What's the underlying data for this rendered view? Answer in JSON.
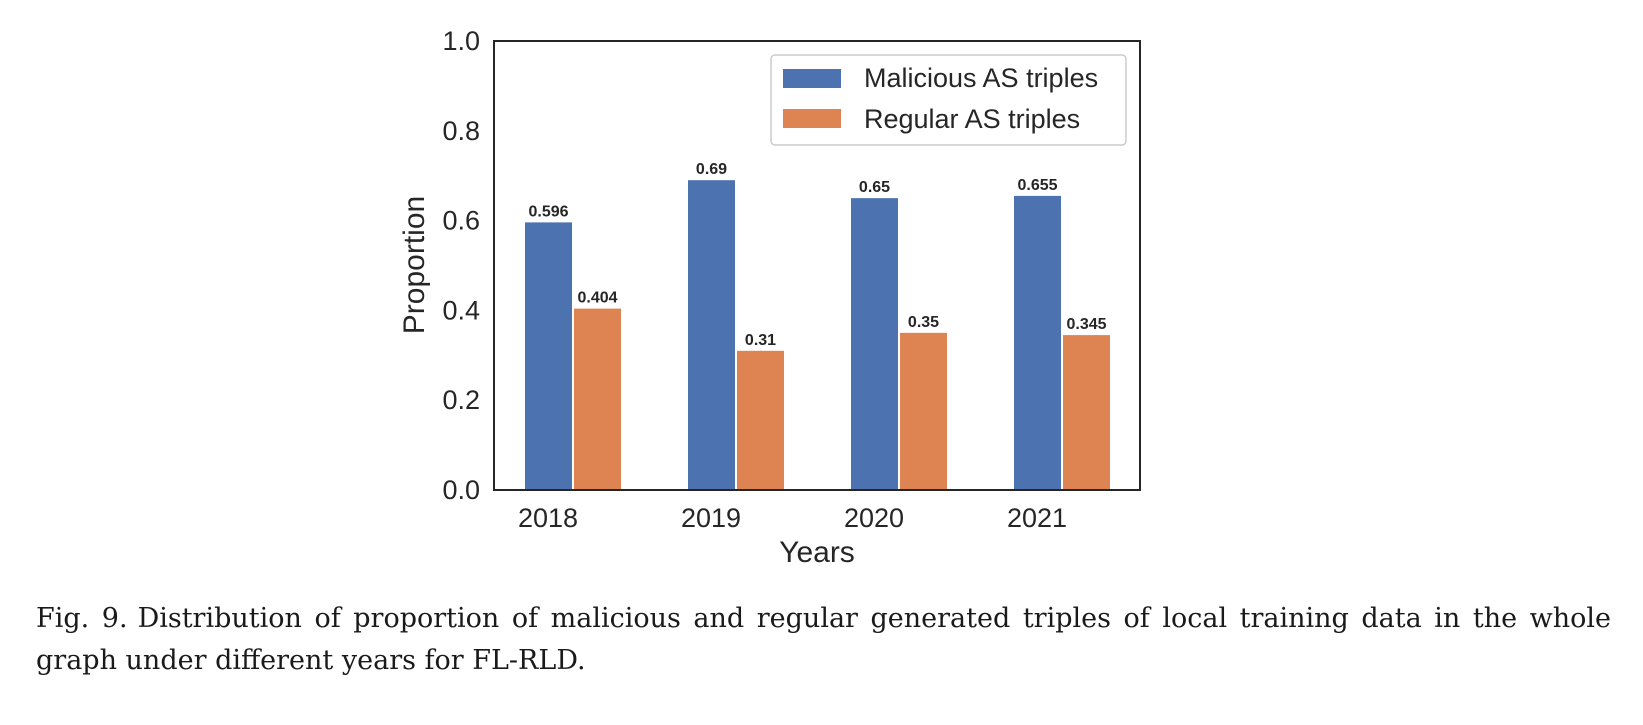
{
  "chart_data": {
    "type": "bar",
    "categories": [
      "2018",
      "2019",
      "2020",
      "2021"
    ],
    "series": [
      {
        "name": "Malicious AS triples",
        "values": [
          0.596,
          0.69,
          0.65,
          0.655
        ],
        "labels": [
          "0.596",
          "0.69",
          "0.65",
          "0.655"
        ],
        "color": "#4c72b0"
      },
      {
        "name": "Regular AS triples",
        "values": [
          0.404,
          0.31,
          0.35,
          0.345
        ],
        "labels": [
          "0.404",
          "0.31",
          "0.35",
          "0.345"
        ],
        "color": "#dd8452"
      }
    ],
    "xlabel": "Years",
    "ylabel": "Proportion",
    "ylim": [
      0,
      1
    ],
    "yticks": [
      "0.0",
      "0.2",
      "0.4",
      "0.6",
      "0.8",
      "1.0"
    ],
    "grid": false,
    "legend": "top-right"
  },
  "caption": {
    "label": "Fig. 9.",
    "text": "Distribution of proportion of malicious and regular generated triples of local training data in the whole graph under different years for FL-RLD."
  }
}
